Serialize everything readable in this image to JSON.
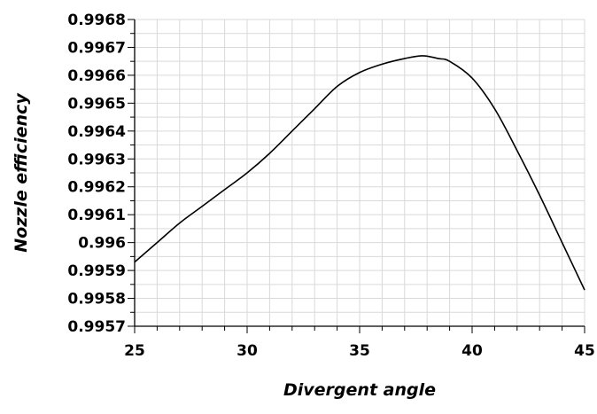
{
  "chart_data": {
    "type": "line",
    "title": "",
    "xlabel": "Divergent angle",
    "ylabel": "Nozzle efficiency",
    "xlim": [
      25,
      45
    ],
    "ylim": [
      0.9957,
      0.9968
    ],
    "grid": true,
    "legend": "none",
    "line_color": "#000000",
    "x_tick_labels": [
      "25",
      "30",
      "35",
      "40",
      "45"
    ],
    "y_tick_labels": [
      "0.9957",
      "0.9958",
      "0.9959",
      "0.996",
      "0.9961",
      "0.9962",
      "0.9963",
      "0.9964",
      "0.9965",
      "0.9966",
      "0.9967",
      "0.9968"
    ],
    "series": [
      {
        "x": [
          25,
          26,
          27,
          28,
          29,
          30,
          31,
          32,
          33,
          34,
          35,
          36,
          37,
          37.8,
          38.5,
          39,
          40,
          41,
          42,
          43,
          44,
          45
        ],
        "y": [
          0.99593,
          0.996,
          0.99607,
          0.99613,
          0.99619,
          0.99625,
          0.99632,
          0.9964,
          0.99648,
          0.99656,
          0.99661,
          0.99664,
          0.99666,
          0.99667,
          0.99666,
          0.99665,
          0.99659,
          0.99648,
          0.99633,
          0.99617,
          0.996,
          0.99583
        ]
      }
    ]
  }
}
